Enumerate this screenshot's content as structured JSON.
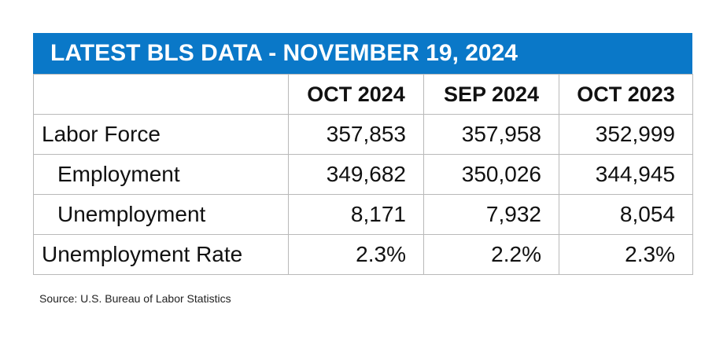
{
  "chart_data": {
    "type": "table",
    "title": "LATEST BLS DATA - NOVEMBER 19, 2024",
    "columns": [
      "",
      "OCT 2024",
      "SEP 2024",
      "OCT 2023"
    ],
    "rows": [
      {
        "label": "Labor Force",
        "indent": false,
        "values": [
          "357,853",
          "357,958",
          "352,999"
        ]
      },
      {
        "label": "Employment",
        "indent": true,
        "values": [
          "349,682",
          "350,026",
          "344,945"
        ]
      },
      {
        "label": "Unemployment",
        "indent": true,
        "values": [
          "8,171",
          "7,932",
          "8,054"
        ]
      },
      {
        "label": "Unemployment Rate",
        "indent": false,
        "values": [
          "2.3%",
          "2.2%",
          "2.3%"
        ]
      }
    ],
    "source": "Source: U.S. Bureau of Labor Statistics",
    "colors": {
      "header_bar": "#0a78c8",
      "header_text": "#ffffff",
      "grid": "#b9b9b9"
    }
  }
}
